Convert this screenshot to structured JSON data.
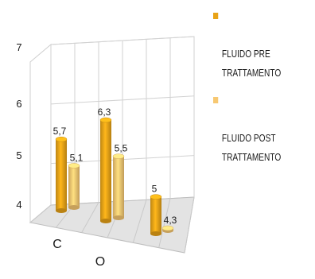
{
  "chart_data": {
    "type": "bar",
    "categories": [
      "C",
      "O",
      ""
    ],
    "series": [
      {
        "name": "FLUIDO PRE\nTRATTAMENTO",
        "values": [
          5.7,
          6.3,
          5.0
        ],
        "data_labels": [
          "5,7",
          "6,3",
          "5"
        ],
        "color": "#e8a317"
      },
      {
        "name": "FLUIDO POST\nTRATTAMENTO",
        "values": [
          5.1,
          5.5,
          4.3
        ],
        "data_labels": [
          "5,1",
          "5,5",
          "4,3"
        ],
        "color": "#f7c872"
      }
    ],
    "y_ticks": [
      "4",
      "5",
      "6",
      "7"
    ],
    "ylim": [
      4.3,
      7.0
    ],
    "title": "",
    "xlabel": "",
    "ylabel": "",
    "grid": true,
    "legend_position": "right",
    "style": "3d-clustered-column"
  }
}
